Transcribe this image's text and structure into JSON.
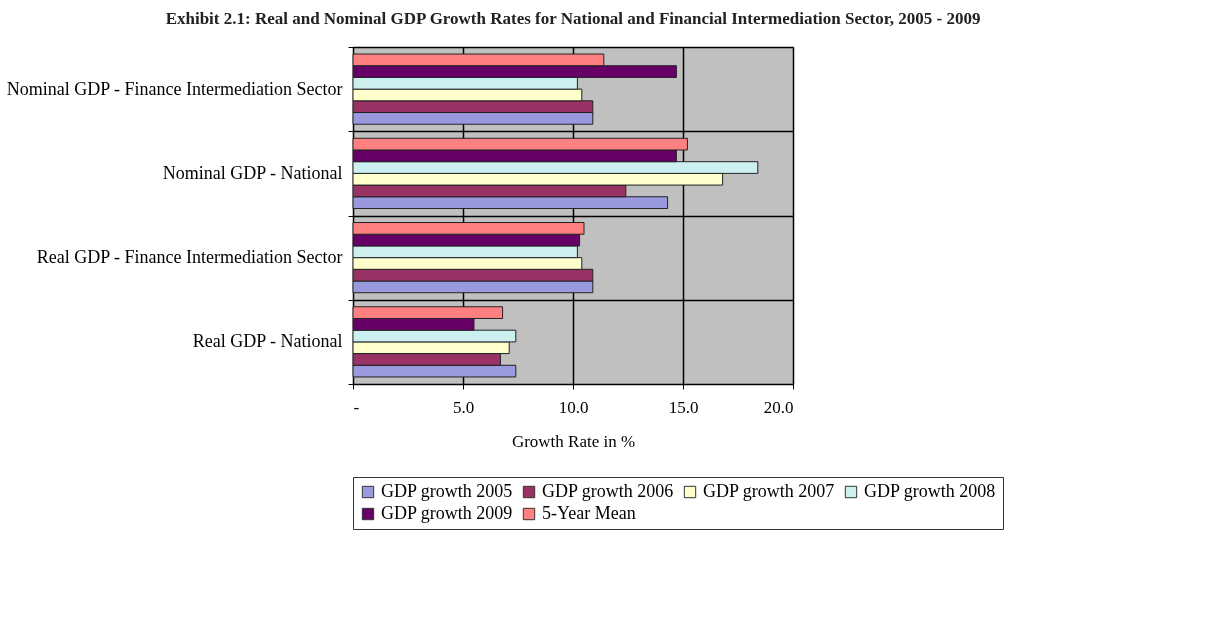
{
  "chart_data": {
    "type": "bar",
    "orientation": "horizontal",
    "title": "Exhibit 2.1: Real and Nominal GDP Growth Rates for National and Financial Intermediation Sector, 2005 - 2009",
    "xlabel": "Growth Rate in %",
    "categories": [
      "Nominal GDP - Finance Intermediation Sector",
      "Nominal GDP - National",
      "Real GDP - Finance Intermediation Sector",
      "Real GDP - National"
    ],
    "series": [
      {
        "name": "GDP growth 2005",
        "color": "#9999dd",
        "values": [
          10.9,
          14.3,
          10.9,
          7.4
        ]
      },
      {
        "name": "GDP growth 2006",
        "color": "#993366",
        "values": [
          10.9,
          12.4,
          10.9,
          6.7
        ]
      },
      {
        "name": "GDP growth 2007",
        "color": "#ffffcc",
        "values": [
          10.4,
          16.8,
          10.4,
          7.1
        ]
      },
      {
        "name": "GDP growth 2008",
        "color": "#ccf0f0",
        "values": [
          10.2,
          18.4,
          10.2,
          7.4
        ]
      },
      {
        "name": "GDP growth 2009",
        "color": "#660066",
        "values": [
          14.7,
          14.7,
          10.3,
          5.5
        ]
      },
      {
        "name": "5-Year Mean",
        "color": "#ff8080",
        "values": [
          11.4,
          15.2,
          10.5,
          6.8
        ]
      }
    ],
    "xlim": [
      0,
      20
    ],
    "xticks": [
      {
        "value": 0,
        "label": "-"
      },
      {
        "value": 5,
        "label": "5.0"
      },
      {
        "value": 10,
        "label": "10.0"
      },
      {
        "value": 15,
        "label": "15.0"
      },
      {
        "value": 20,
        "label": "20.0"
      }
    ],
    "grid": true,
    "legend": "bottom"
  }
}
